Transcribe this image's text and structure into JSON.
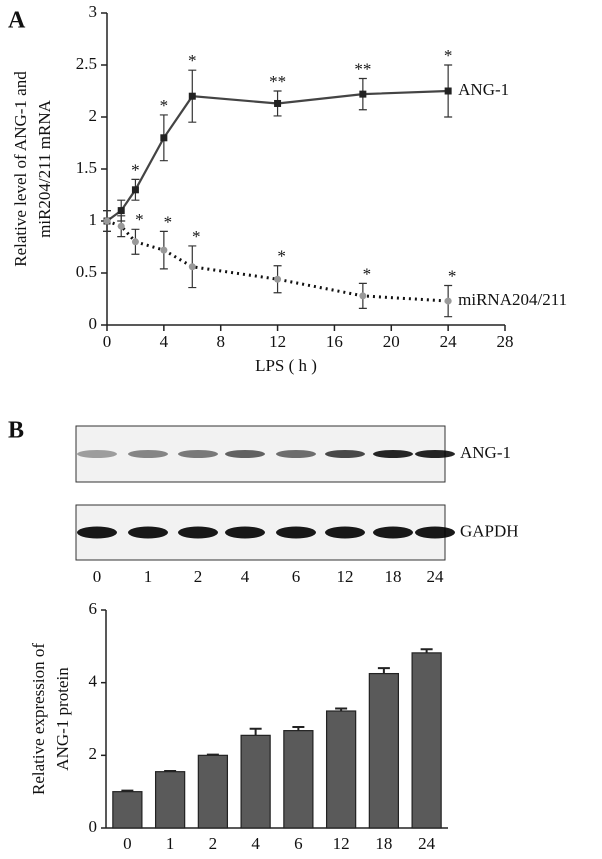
{
  "chart_data": [
    {
      "type": "line",
      "panel": "A",
      "x": [
        0,
        1,
        2,
        4,
        6,
        12,
        18,
        24
      ],
      "series": [
        {
          "name": "ANG-1",
          "color": "#444444",
          "style": "solid",
          "marker": "square",
          "values": [
            1.0,
            1.1,
            1.3,
            1.8,
            2.2,
            2.13,
            2.22,
            2.25
          ],
          "errors": [
            0.1,
            0.1,
            0.1,
            0.22,
            0.25,
            0.12,
            0.15,
            0.25
          ],
          "significance": [
            null,
            null,
            "*",
            "*",
            "*",
            "**",
            "**",
            "*"
          ]
        },
        {
          "name": "miRNA204/211",
          "color": "#111111",
          "style": "dotted",
          "marker": "circle",
          "values": [
            1.0,
            0.95,
            0.8,
            0.72,
            0.56,
            0.44,
            0.28,
            0.23
          ],
          "errors": [
            0.1,
            0.1,
            0.12,
            0.18,
            0.2,
            0.13,
            0.12,
            0.15
          ],
          "significance": [
            null,
            null,
            "*",
            "*",
            "*",
            "*",
            "*",
            "*"
          ]
        }
      ],
      "xlabel": "LPS ( h )",
      "ylabel": [
        "Relative level of ANG-1 and",
        "miR204/211 mRNA"
      ],
      "xlim": [
        0,
        28
      ],
      "xticks": [
        0,
        4,
        8,
        12,
        16,
        20,
        24,
        28
      ],
      "ylim": [
        0,
        3
      ],
      "yticks": [
        0,
        0.5,
        1,
        1.5,
        2,
        2.5,
        3
      ]
    },
    {
      "type": "bar",
      "panel": "B",
      "categories": [
        "0",
        "1",
        "2",
        "4",
        "6",
        "12",
        "18",
        "24"
      ],
      "values": [
        1.0,
        1.55,
        2.0,
        2.55,
        2.68,
        3.22,
        4.25,
        4.82
      ],
      "errors": [
        0.03,
        0.02,
        0.02,
        0.18,
        0.1,
        0.07,
        0.15,
        0.1
      ],
      "color": "#5a5a5a",
      "ylabel": [
        "Relative expression of",
        "ANG-1 protein"
      ],
      "ylim": [
        0,
        6
      ],
      "yticks": [
        0,
        2,
        4,
        6
      ],
      "blot": {
        "rows": [
          "ANG-1",
          "GAPDH"
        ],
        "lanes": [
          "0",
          "1",
          "2",
          "4",
          "6",
          "12",
          "18",
          "24"
        ]
      }
    }
  ]
}
